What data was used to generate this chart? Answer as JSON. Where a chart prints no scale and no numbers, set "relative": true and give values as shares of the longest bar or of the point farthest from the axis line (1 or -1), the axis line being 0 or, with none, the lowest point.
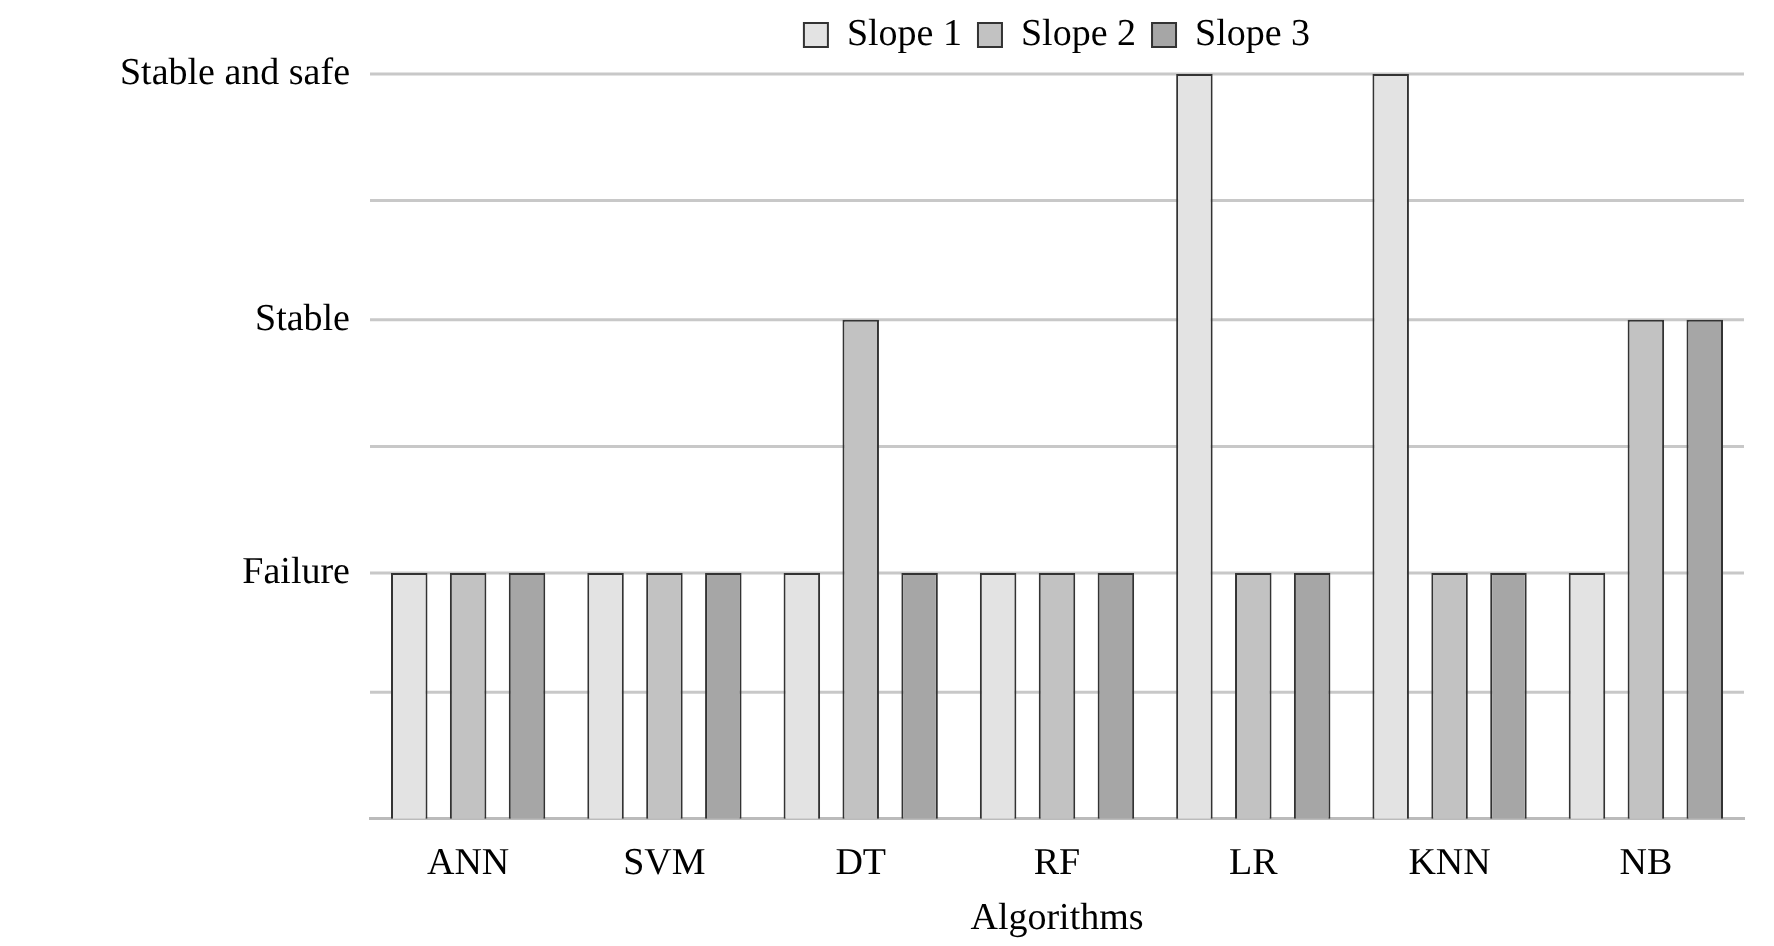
{
  "chart_data": {
    "type": "bar",
    "xlabel": "Algorithms",
    "relative": true,
    "categories": [
      "ANN",
      "SVM",
      "DT",
      "RF",
      "LR",
      "KNN",
      "NB"
    ],
    "series": [
      {
        "name": "Slope 1",
        "color": "#e3e3e3",
        "values": [
          0.33,
          0.33,
          0.33,
          0.33,
          1,
          1,
          0.33
        ]
      },
      {
        "name": "Slope 2",
        "color": "#c2c2c2",
        "values": [
          0.33,
          0.33,
          0.67,
          0.33,
          0.33,
          0.33,
          0.67
        ]
      },
      {
        "name": "Slope 3",
        "color": "#a6a6a6",
        "values": [
          0.33,
          0.33,
          0.33,
          0.33,
          0.33,
          0.33,
          0.67
        ]
      }
    ],
    "ref_lines": [
      {
        "axis": "y",
        "value": 0.17,
        "color": "#c8c8c8"
      },
      {
        "axis": "y",
        "value": 0.33,
        "label": "Failure",
        "color": "#c8c8c8"
      },
      {
        "axis": "y",
        "value": 0.5,
        "color": "#c8c8c8"
      },
      {
        "axis": "y",
        "value": 0.67,
        "label": "Stable",
        "color": "#c8c8c8"
      },
      {
        "axis": "y",
        "value": 0.83,
        "color": "#c8c8c8"
      },
      {
        "axis": "y",
        "value": 1,
        "label": "Stable and safe",
        "color": "#c8c8c8"
      }
    ],
    "legend": "top"
  }
}
